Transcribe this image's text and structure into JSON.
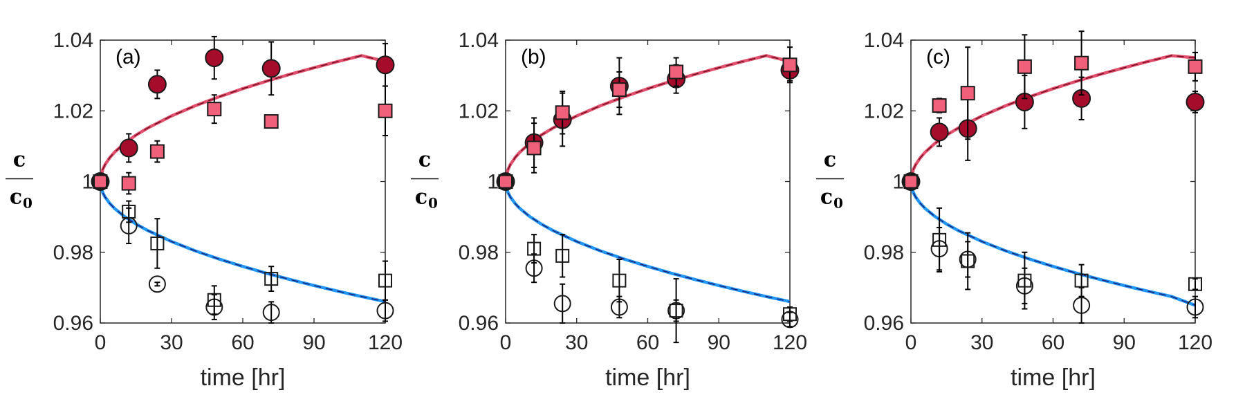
{
  "chart_data": [
    {
      "type": "scatter",
      "panel_label": "(a)",
      "xlabel": "time [hr]",
      "ylabel": "c",
      "ylabel_denominator": "c",
      "ylabel_denominator_subscript": "0",
      "xlim": [
        0,
        120
      ],
      "ylim": [
        0.96,
        1.04
      ],
      "xticks": [
        0,
        30,
        60,
        90,
        120
      ],
      "yticks": [
        0.96,
        0.98,
        1,
        1.02,
        1.04
      ],
      "ytick_labels": [
        "0.96",
        "0.98",
        "1",
        "1.02",
        "1.04"
      ],
      "series": [
        {
          "name": "filled circles",
          "marker": "circle",
          "filled": true,
          "x": [
            0,
            12,
            24,
            48,
            72,
            120
          ],
          "y": [
            1.0,
            1.0095,
            1.0275,
            1.035,
            1.032,
            1.033
          ],
          "err": [
            0,
            0.004,
            0.004,
            0.006,
            0.0075,
            0.006
          ]
        },
        {
          "name": "filled squares",
          "marker": "square",
          "filled": true,
          "x": [
            0,
            12,
            24,
            48,
            72,
            120
          ],
          "y": [
            1.0,
            0.9995,
            1.0085,
            1.0205,
            1.017,
            1.02
          ],
          "err": [
            0,
            0.003,
            0.003,
            0.004,
            0.001,
            0.007
          ]
        },
        {
          "name": "open circles",
          "marker": "circle",
          "filled": false,
          "x": [
            0,
            12,
            24,
            48,
            72,
            120
          ],
          "y": [
            1.0,
            0.9875,
            0.971,
            0.9645,
            0.963,
            0.9635
          ],
          "err": [
            0,
            0.005,
            0.0005,
            0.0035,
            0.003,
            0.003
          ]
        },
        {
          "name": "open squares",
          "marker": "square",
          "filled": false,
          "x": [
            0,
            12,
            24,
            48,
            72,
            120
          ],
          "y": [
            1.0,
            0.9915,
            0.9825,
            0.9665,
            0.9725,
            0.972
          ],
          "err": [
            0,
            0.003,
            0.007,
            0.004,
            0.0035,
            0.0055
          ]
        }
      ],
      "fit_lines": [
        {
          "name": "upper fit",
          "color": "#e0506e",
          "dash_color": "#7a0f24",
          "x": [
            0,
            1,
            2,
            4,
            6,
            10,
            15,
            20,
            30,
            40,
            50,
            60,
            70,
            80,
            90,
            100,
            110,
            120
          ],
          "y": [
            1.0,
            1.00339,
            1.00479,
            1.00678,
            1.0083,
            1.01072,
            1.01313,
            1.01515,
            1.01856,
            1.02144,
            1.02397,
            1.02627,
            1.02838,
            1.03035,
            1.03219,
            1.03394,
            1.0356,
            1.034
          ]
        },
        {
          "name": "lower fit",
          "color": "#2196f3",
          "dash_color": "#1a237e",
          "x": [
            0,
            1,
            2,
            4,
            6,
            10,
            15,
            20,
            30,
            40,
            50,
            60,
            70,
            80,
            90,
            100,
            110,
            120
          ],
          "y": [
            1.0,
            0.9969,
            0.99562,
            0.99381,
            0.99241,
            0.9902,
            0.988,
            0.98615,
            0.98304,
            0.9804,
            0.9781,
            0.976,
            0.97407,
            0.97228,
            0.9706,
            0.969,
            0.96749,
            0.96605
          ]
        }
      ]
    },
    {
      "type": "scatter",
      "panel_label": "(b)",
      "xlabel": "time [hr]",
      "ylabel": "c",
      "ylabel_denominator": "c",
      "ylabel_denominator_subscript": "0",
      "xlim": [
        0,
        120
      ],
      "ylim": [
        0.96,
        1.04
      ],
      "xticks": [
        0,
        30,
        60,
        90,
        120
      ],
      "yticks": [
        0.96,
        0.98,
        1,
        1.02,
        1.04
      ],
      "ytick_labels": [
        "0.96",
        "0.98",
        "1",
        "1.02",
        "1.04"
      ],
      "series": [
        {
          "name": "filled circles",
          "marker": "circle",
          "filled": true,
          "x": [
            0,
            12,
            24,
            48,
            72,
            120
          ],
          "y": [
            1.0,
            1.011,
            1.0175,
            1.027,
            1.029,
            1.0315
          ],
          "err": [
            0,
            0.007,
            0.0075,
            0.008,
            0.004,
            0.003
          ]
        },
        {
          "name": "filled squares",
          "marker": "square",
          "filled": true,
          "x": [
            0,
            12,
            24,
            48,
            72,
            120
          ],
          "y": [
            1.0,
            1.0095,
            1.0195,
            1.026,
            1.031,
            1.033
          ],
          "err": [
            0,
            0.007,
            0.006,
            0.005,
            0.004,
            0.005
          ]
        },
        {
          "name": "open circles",
          "marker": "circle",
          "filled": false,
          "x": [
            0,
            12,
            24,
            48,
            72,
            120
          ],
          "y": [
            1.0,
            0.9755,
            0.9655,
            0.9645,
            0.9635,
            0.961
          ],
          "err": [
            0,
            0.004,
            0.0055,
            0.003,
            0.003,
            0.002
          ]
        },
        {
          "name": "open squares",
          "marker": "square",
          "filled": false,
          "x": [
            0,
            12,
            24,
            48,
            72,
            120
          ],
          "y": [
            1.0,
            0.981,
            0.979,
            0.972,
            0.9635,
            0.9625
          ],
          "err": [
            0,
            0.004,
            0.006,
            0.006,
            0.009,
            0.002
          ]
        }
      ],
      "fit_lines": [
        {
          "name": "upper fit",
          "color": "#e0506e",
          "dash_color": "#7a0f24",
          "x": [
            0,
            1,
            2,
            4,
            6,
            10,
            15,
            20,
            30,
            40,
            50,
            60,
            70,
            80,
            90,
            100,
            110,
            120
          ],
          "y": [
            1.0,
            1.00339,
            1.00479,
            1.00678,
            1.0083,
            1.01072,
            1.01313,
            1.01515,
            1.01856,
            1.02144,
            1.02397,
            1.02627,
            1.02838,
            1.03035,
            1.03219,
            1.03394,
            1.0356,
            1.034
          ]
        },
        {
          "name": "lower fit",
          "color": "#2196f3",
          "dash_color": "#1a237e",
          "x": [
            0,
            1,
            2,
            4,
            6,
            10,
            15,
            20,
            30,
            40,
            50,
            60,
            70,
            80,
            90,
            100,
            110,
            120
          ],
          "y": [
            1.0,
            0.9969,
            0.99562,
            0.99381,
            0.99241,
            0.9902,
            0.988,
            0.98615,
            0.98304,
            0.9804,
            0.9781,
            0.976,
            0.97407,
            0.97228,
            0.9706,
            0.969,
            0.96749,
            0.96605
          ]
        }
      ]
    },
    {
      "type": "scatter",
      "panel_label": "(c)",
      "xlabel": "time [hr]",
      "ylabel": "c",
      "ylabel_denominator": "c",
      "ylabel_denominator_subscript": "0",
      "xlim": [
        0,
        120
      ],
      "ylim": [
        0.96,
        1.04
      ],
      "xticks": [
        0,
        30,
        60,
        90,
        120
      ],
      "yticks": [
        0.96,
        0.98,
        1,
        1.02,
        1.04
      ],
      "ytick_labels": [
        "0.96",
        "0.98",
        "1",
        "1.02",
        "1.04"
      ],
      "series": [
        {
          "name": "filled circles",
          "marker": "circle",
          "filled": true,
          "x": [
            0,
            12,
            24,
            48,
            72,
            120
          ],
          "y": [
            1.0,
            1.014,
            1.015,
            1.0225,
            1.0235,
            1.0225
          ],
          "err": [
            0,
            0.004,
            0.009,
            0.0075,
            0.006,
            0.003
          ]
        },
        {
          "name": "filled squares",
          "marker": "square",
          "filled": true,
          "x": [
            0,
            12,
            24,
            48,
            72,
            120
          ],
          "y": [
            1.0,
            1.0215,
            1.025,
            1.0325,
            1.0335,
            1.0325
          ],
          "err": [
            0,
            0.002,
            0.013,
            0.009,
            0.009,
            0.004
          ]
        },
        {
          "name": "open circles",
          "marker": "circle",
          "filled": false,
          "x": [
            0,
            12,
            24,
            48,
            72,
            120
          ],
          "y": [
            1.0,
            0.981,
            0.978,
            0.9705,
            0.965,
            0.9645
          ],
          "err": [
            0,
            0.006,
            0.005,
            0.005,
            0.005,
            0.003
          ]
        },
        {
          "name": "open squares",
          "marker": "square",
          "filled": false,
          "x": [
            0,
            12,
            24,
            48,
            72,
            120
          ],
          "y": [
            1.0,
            0.9835,
            0.9775,
            0.972,
            0.972,
            0.971
          ],
          "err": [
            0,
            0.009,
            0.008,
            0.008,
            0.0045,
            0.0015
          ]
        }
      ],
      "fit_lines": [
        {
          "name": "upper fit",
          "color": "#e0506e",
          "dash_color": "#7a0f24",
          "x": [
            0,
            1,
            2,
            4,
            6,
            10,
            15,
            20,
            30,
            40,
            50,
            60,
            70,
            80,
            90,
            100,
            110,
            120
          ],
          "y": [
            1.0,
            1.00339,
            1.00479,
            1.00678,
            1.0083,
            1.01072,
            1.01313,
            1.01515,
            1.01856,
            1.02144,
            1.02397,
            1.02627,
            1.02838,
            1.03035,
            1.03219,
            1.03394,
            1.0356,
            1.035
          ]
        },
        {
          "name": "lower fit",
          "color": "#2196f3",
          "dash_color": "#1a237e",
          "x": [
            0,
            1,
            2,
            4,
            6,
            10,
            15,
            20,
            30,
            40,
            50,
            60,
            70,
            80,
            90,
            100,
            110,
            120
          ],
          "y": [
            1.0,
            0.9969,
            0.99562,
            0.99381,
            0.99241,
            0.9902,
            0.988,
            0.98615,
            0.98304,
            0.9804,
            0.9781,
            0.976,
            0.97407,
            0.97228,
            0.9706,
            0.969,
            0.96749,
            0.965
          ]
        }
      ]
    }
  ],
  "colors": {
    "filled_circle": "#a50b2a",
    "filled_square": "#f0607a",
    "marker_edge": "#1a1a1a",
    "axis": "#262626"
  }
}
